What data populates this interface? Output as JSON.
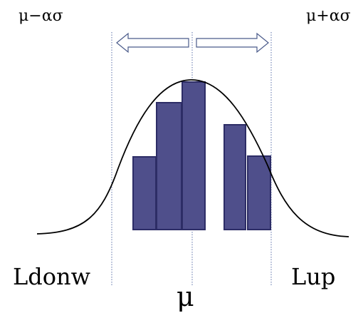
{
  "labels": {
    "mu_minus": "μ−ασ",
    "mu_plus": "μ+ασ",
    "left": "Ldonw",
    "right": "Lup",
    "mean": "μ"
  },
  "colors": {
    "bar_fill": "#4f4f8b",
    "bar_stroke": "#2d2d66",
    "curve": "#000000",
    "dotted_line": "#5a6fa8",
    "arrow_stroke": "#4a5a8a"
  }
}
